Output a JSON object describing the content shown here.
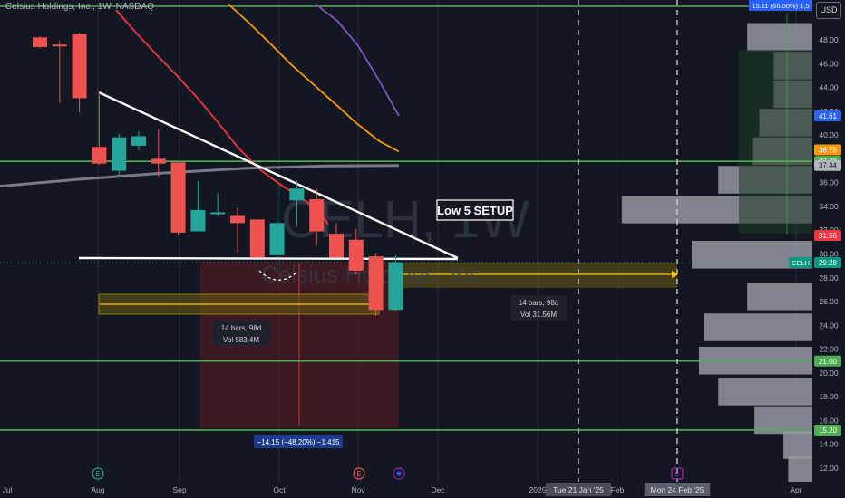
{
  "header": {
    "symbol_line": "Celsius Holdings, Inc., 1W, NASDAQ"
  },
  "currency_button": "USD",
  "watermark": {
    "symbol": "CELH, 1W",
    "name": "Celsius Holdings, Inc."
  },
  "setup_label": "Low 5 SETUP",
  "info_boxes": {
    "left_range": {
      "line1": "14 bars, 98d",
      "line2": "Vol 583.4M"
    },
    "right_range": {
      "line1": "14 bars, 98d",
      "line2": "Vol 31.56M"
    },
    "measure": "−14.15 (−48.20%) −1,415"
  },
  "price_labels": {
    "top": "15.11 (66.00%) 1,5",
    "badges": [
      {
        "text": "41.61",
        "value": 41.61,
        "color": "#2962ff"
      },
      {
        "text": "38.75",
        "value": 38.75,
        "color": "#ff9800"
      },
      {
        "text": "37.79",
        "value": 37.79,
        "color": "#4caf50"
      },
      {
        "text": "37.44",
        "value": 37.44,
        "color": "#b2b5be"
      },
      {
        "text": "31.56",
        "value": 31.56,
        "color": "#f23645"
      },
      {
        "text": "29.28",
        "value": 29.28,
        "color": "#089981",
        "prefix": "CELH"
      },
      {
        "text": "21.00",
        "value": 21.0,
        "color": "#4caf50"
      },
      {
        "text": "15.20",
        "value": 15.2,
        "color": "#4caf50"
      }
    ]
  },
  "colors": {
    "up": "#26a69a",
    "down": "#ef5350",
    "bg": "#131722",
    "grid": "#2a2e39",
    "hline": "#4caf50"
  },
  "chart_data": {
    "type": "candlestick",
    "title": "Celsius Holdings, Inc., 1W, NASDAQ",
    "ylim": [
      11,
      50
    ],
    "y_ticks": [
      12,
      14,
      16,
      18,
      20,
      22,
      24,
      26,
      28,
      30,
      32,
      34,
      36,
      38,
      40,
      42,
      44,
      46,
      48
    ],
    "x_labels": [
      "Jul",
      "Aug",
      "Sep",
      "Oct",
      "Nov",
      "Dec",
      "2025",
      "Tue 21 Jan '25",
      "Feb",
      "Mon 24 Feb '25",
      "Apr"
    ],
    "candles": [
      {
        "o": 48.2,
        "h": 48.3,
        "l": 47.3,
        "c": 47.4
      },
      {
        "o": 47.6,
        "h": 47.9,
        "l": 42.7,
        "c": 47.5
      },
      {
        "o": 48.5,
        "h": 48.6,
        "l": 41.9,
        "c": 43.1
      },
      {
        "o": 39.0,
        "h": 43.7,
        "l": 37.5,
        "c": 37.6
      },
      {
        "o": 37.0,
        "h": 40.1,
        "l": 36.4,
        "c": 39.8
      },
      {
        "o": 39.1,
        "h": 40.3,
        "l": 38.7,
        "c": 39.9
      },
      {
        "o": 38.0,
        "h": 40.5,
        "l": 36.5,
        "c": 37.6
      },
      {
        "o": 37.7,
        "h": 37.7,
        "l": 31.6,
        "c": 31.8
      },
      {
        "o": 31.9,
        "h": 36.1,
        "l": 31.9,
        "c": 33.7
      },
      {
        "o": 33.4,
        "h": 35.1,
        "l": 33.2,
        "c": 33.5
      },
      {
        "o": 33.2,
        "h": 33.9,
        "l": 30.1,
        "c": 32.6
      },
      {
        "o": 32.9,
        "h": 32.9,
        "l": 29.7,
        "c": 29.7
      },
      {
        "o": 29.9,
        "h": 35.2,
        "l": 28.4,
        "c": 32.6
      },
      {
        "o": 34.5,
        "h": 36.2,
        "l": 32.3,
        "c": 35.5
      },
      {
        "o": 34.6,
        "h": 35.5,
        "l": 30.7,
        "c": 31.9
      },
      {
        "o": 31.7,
        "h": 32.6,
        "l": 29.7,
        "c": 29.7
      },
      {
        "o": 31.2,
        "h": 32.1,
        "l": 28.3,
        "c": 28.6
      },
      {
        "o": 29.8,
        "h": 30.1,
        "l": 24.8,
        "c": 25.3
      },
      {
        "o": 25.3,
        "h": 29.9,
        "l": 25.2,
        "c": 29.3
      }
    ],
    "volume_profile": [
      {
        "price": 48.2,
        "value": 0.27
      },
      {
        "price": 45.8,
        "value": 0.16
      },
      {
        "price": 43.4,
        "value": 0.16
      },
      {
        "price": 41.0,
        "value": 0.22
      },
      {
        "price": 38.6,
        "value": 0.25
      },
      {
        "price": 36.2,
        "value": 0.39
      },
      {
        "price": 33.7,
        "value": 0.79
      },
      {
        "price": 29.9,
        "value": 0.5
      },
      {
        "price": 26.4,
        "value": 0.27
      },
      {
        "price": 23.8,
        "value": 0.45
      },
      {
        "price": 21.0,
        "value": 0.47
      },
      {
        "price": 18.4,
        "value": 0.39
      },
      {
        "price": 16.0,
        "value": 0.24
      },
      {
        "price": 13.9,
        "value": 0.12
      },
      {
        "price": 11.8,
        "value": 0.1
      }
    ],
    "horizontal_lines": [
      50.0,
      37.79,
      21.0,
      15.2
    ],
    "moving_averages": [
      {
        "color": "#f23645",
        "values": [
          50.5,
          48.6,
          46.8,
          45.0,
          43.1,
          41.1,
          39.0,
          37.2,
          35.9,
          34.8,
          33.8,
          32.5
        ]
      },
      {
        "color": "#ff9800",
        "values": [
          51.0,
          49.4,
          47.7,
          46.0,
          44.3,
          42.6,
          41.0,
          39.5,
          38.6
        ]
      },
      {
        "color": "#7e57c2",
        "values": [
          51.0,
          49.6,
          47.5,
          44.6,
          41.6
        ]
      },
      {
        "color": "#787b86",
        "values": [
          35.7,
          36.3,
          36.8,
          37.2,
          37.4,
          37.44
        ]
      }
    ]
  }
}
